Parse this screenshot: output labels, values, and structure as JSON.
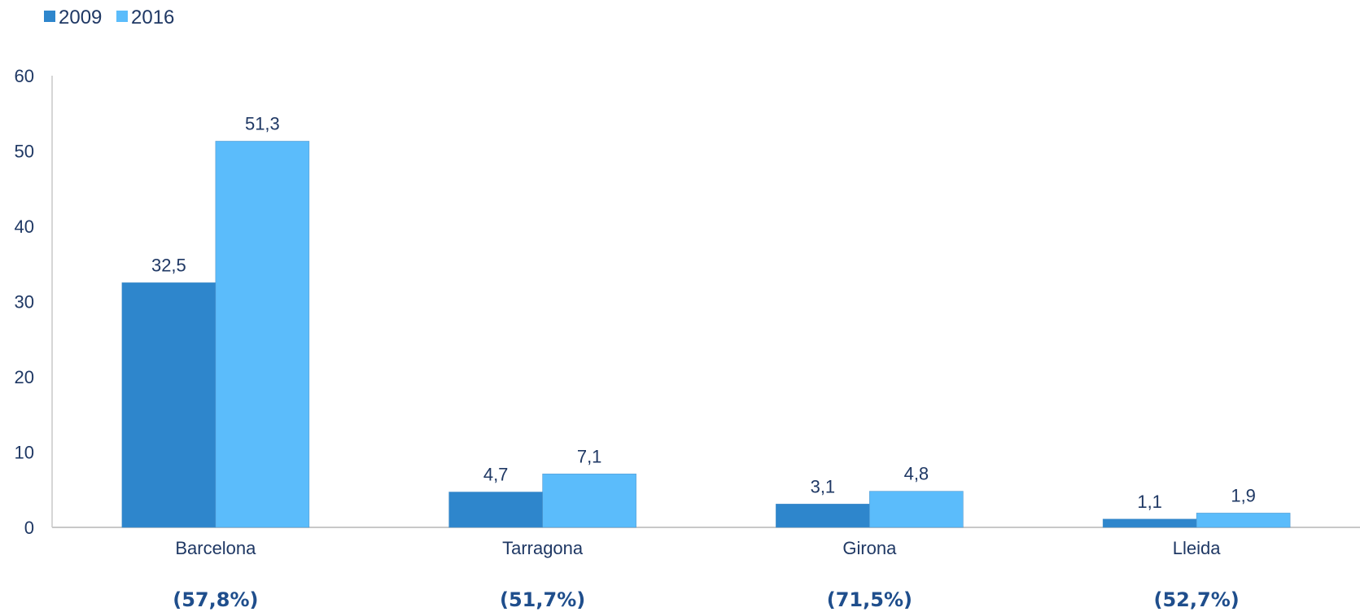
{
  "chart_data": {
    "type": "bar",
    "categories": [
      "Barcelona",
      "Tarragona",
      "Girona",
      "Lleida"
    ],
    "category_notes": [
      "(57,8%)",
      "(51,7%)",
      "(71,5%)",
      "(52,7%)"
    ],
    "series": [
      {
        "name": "2009",
        "values": [
          32.5,
          4.7,
          3.1,
          1.1
        ],
        "labels": [
          "32,5",
          "4,7",
          "3,1",
          "1,1"
        ],
        "color": "#2e86cc"
      },
      {
        "name": "2016",
        "values": [
          51.3,
          7.1,
          4.8,
          1.9
        ],
        "labels": [
          "51,3",
          "7,1",
          "4,8",
          "1,9"
        ],
        "color": "#5bbcfb"
      }
    ],
    "ylim": [
      0,
      60
    ],
    "yticks": [
      0,
      10,
      20,
      30,
      40,
      50,
      60
    ],
    "ytick_labels": [
      "0",
      "10",
      "20",
      "30",
      "40",
      "50",
      "60"
    ],
    "grid": false,
    "legend_position": "top-left",
    "text_color": "#1f3864",
    "axis_color": "#c8c8c8"
  }
}
